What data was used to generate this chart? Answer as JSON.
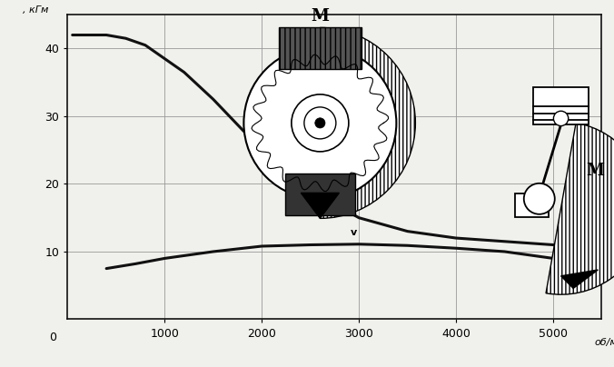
{
  "title": "",
  "xlabel": "об/мин",
  "ylabel": ", кГм",
  "xlim": [
    0,
    5500
  ],
  "ylim": [
    0,
    45
  ],
  "xticks": [
    1000,
    2000,
    3000,
    4000,
    5000
  ],
  "yticks": [
    10,
    20,
    30,
    40
  ],
  "background_color": "#f0f0ec",
  "curve1_x": [
    50,
    200,
    400,
    600,
    800,
    1000,
    1200,
    1500,
    2000,
    2500,
    3000,
    3500,
    4000,
    4500,
    5000,
    5300
  ],
  "curve1_y": [
    42.0,
    42.0,
    42.0,
    41.5,
    40.5,
    38.5,
    36.5,
    32.5,
    25.0,
    19.0,
    15.0,
    13.0,
    12.0,
    11.5,
    11.0,
    10.5
  ],
  "curve2_x": [
    400,
    700,
    1000,
    1500,
    2000,
    2500,
    3000,
    3500,
    4000,
    4500,
    5000,
    5300
  ],
  "curve2_y": [
    7.5,
    8.2,
    9.0,
    10.0,
    10.8,
    11.0,
    11.1,
    10.9,
    10.5,
    10.0,
    9.0,
    7.0
  ],
  "grid_color": "#999999",
  "line_color": "#111111",
  "line_width": 2.2
}
